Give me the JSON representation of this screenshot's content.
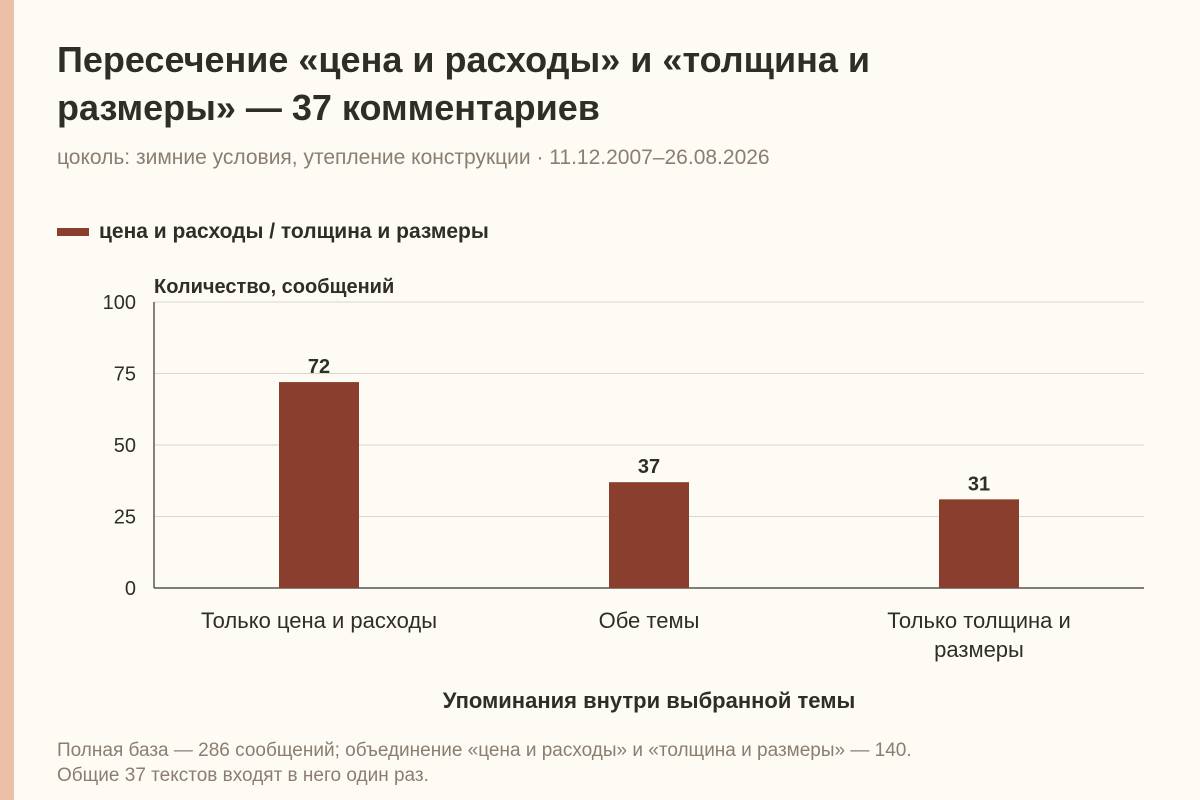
{
  "header": {
    "title": "Пересечение «цена и расходы» и «толщина и размеры» — 37 комментариев",
    "subtitle": "цоколь: зимние условия, утепление конструкции · 11.12.2007–26.08.2026"
  },
  "footer": {
    "note_line1": "Полная база — 286 сообщений; объединение «цена и расходы» и «толщина и размеры» — 140.",
    "note_line2": "Общие 37 текстов входят в него один раз."
  },
  "colors": {
    "bar": "#8a3f2e",
    "accent_strip": "#ecc0a6",
    "grid": "#dad6cc",
    "axis": "#333333"
  },
  "chart_data": {
    "type": "bar",
    "title": "Пересечение «цена и расходы» и «толщина и размеры» — 37 комментариев",
    "subtitle": "цоколь: зимние условия, утепление конструкции · 11.12.2007–26.08.2026",
    "xlabel": "Упоминания внутри выбранной темы",
    "ylabel": "Количество, сообщений",
    "ylim": [
      0,
      100
    ],
    "yticks": [
      0,
      25,
      50,
      75,
      100
    ],
    "grid": true,
    "legend_position": "top-left",
    "categories": [
      [
        "Только цена и расходы"
      ],
      [
        "Обе темы"
      ],
      [
        "Только толщина и",
        "размеры"
      ]
    ],
    "series": [
      {
        "name": "цена и расходы / толщина и размеры",
        "values": [
          72,
          37,
          31
        ]
      }
    ]
  }
}
